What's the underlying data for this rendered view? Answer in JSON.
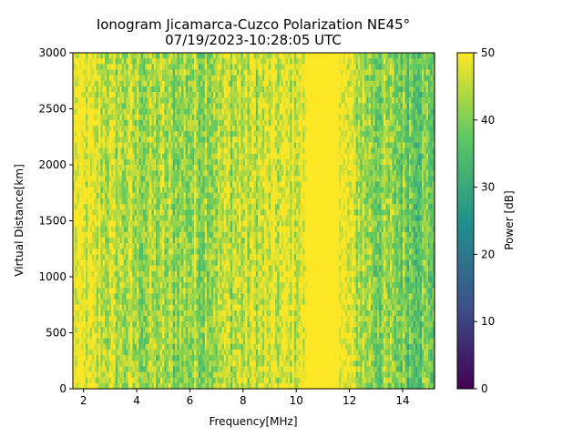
{
  "chart_data": {
    "type": "heatmap",
    "title_line1": "Ionogram Jicamarca-Cuzco Polarization NE45°",
    "title_line2": "07/19/2023-10:28:05 UTC",
    "xlabel": "Frequency[MHz]",
    "ylabel": "Virtual Distance[km]",
    "colorbar_label": "Power [dB]",
    "xlim": [
      1.6,
      15.2
    ],
    "ylim": [
      0,
      3000
    ],
    "x_ticks": [
      2,
      4,
      6,
      8,
      10,
      12,
      14
    ],
    "y_ticks": [
      0,
      500,
      1000,
      1500,
      2000,
      2500,
      3000
    ],
    "color_range": [
      0,
      50
    ],
    "colorbar_ticks": [
      0,
      10,
      20,
      30,
      40,
      50
    ],
    "colormap": "viridis",
    "colormap_stops": [
      "#440154",
      "#3b528b",
      "#21918c",
      "#5ec962",
      "#fde725"
    ],
    "power_profile_freq_mhz": [
      1.6,
      2.0,
      2.5,
      3.0,
      3.5,
      4.0,
      4.5,
      5.0,
      5.5,
      6.0,
      6.5,
      7.0,
      7.5,
      8.0,
      8.5,
      9.0,
      9.5,
      10.0,
      10.5,
      11.0,
      11.5,
      12.0,
      12.5,
      13.0,
      13.5,
      14.0,
      14.5,
      15.2
    ],
    "power_profile_db": [
      49,
      48,
      46,
      45,
      44,
      43,
      42,
      42,
      42,
      42,
      43,
      44,
      45,
      45,
      46,
      46,
      47,
      48,
      50,
      50,
      50,
      47,
      43,
      41,
      40,
      40,
      39,
      39
    ],
    "grid": false,
    "legend": "none"
  }
}
